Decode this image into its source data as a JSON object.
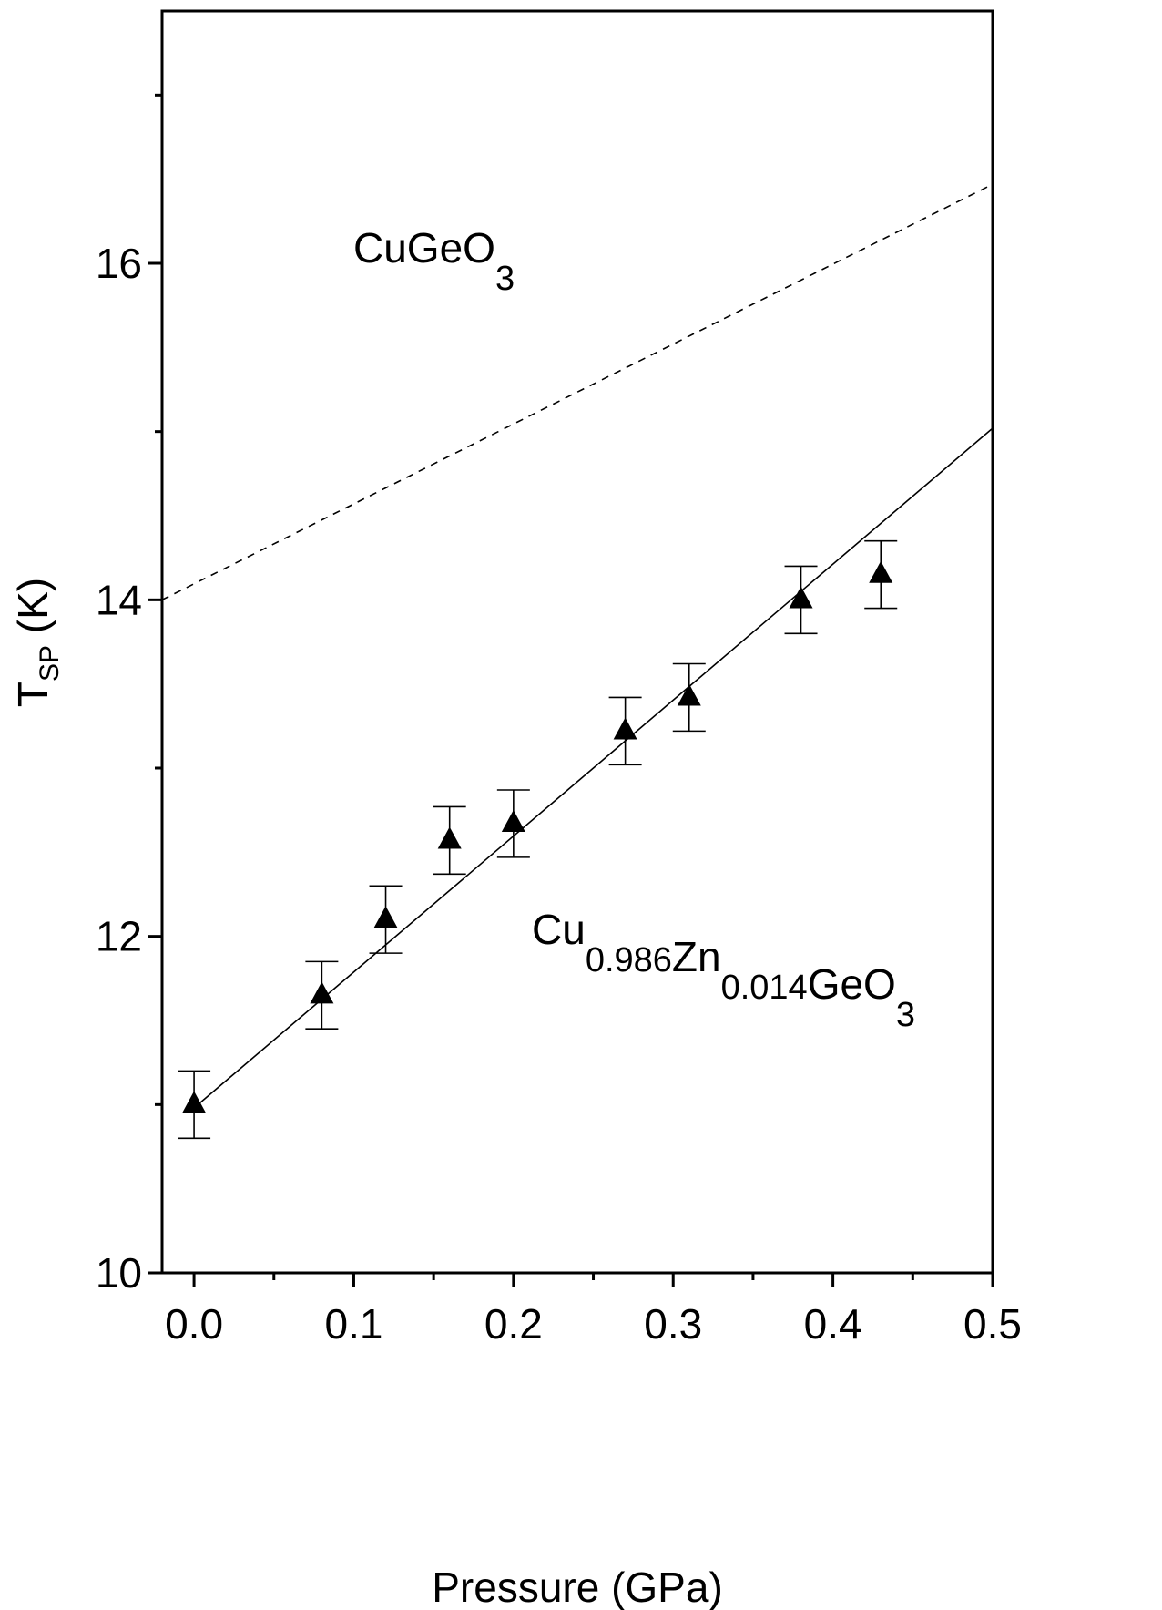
{
  "chart_data": {
    "type": "scatter",
    "title": "",
    "xlabel": "Pressure (GPa)",
    "ylabel": {
      "main": "T",
      "sub": "SP",
      "unit": " (K)"
    },
    "xlim": [
      -0.02,
      0.5
    ],
    "ylim": [
      10,
      17.5
    ],
    "xticks": [
      "0.0",
      "0.1",
      "0.2",
      "0.3",
      "0.4",
      "0.5"
    ],
    "xtick_values": [
      0.0,
      0.1,
      0.2,
      0.3,
      0.4,
      0.5
    ],
    "xminor_values": [
      0.05,
      0.15,
      0.25,
      0.35,
      0.45
    ],
    "yticks": [
      "10",
      "12",
      "14",
      "16"
    ],
    "ytick_values": [
      10,
      12,
      14,
      16
    ],
    "yminor_values": [
      11,
      13,
      15,
      17
    ],
    "grid": false,
    "series": [
      {
        "marker": "filled-triangle",
        "color": "#000000",
        "points": [
          {
            "x": 0.0,
            "y": 11.0,
            "err": 0.2
          },
          {
            "x": 0.08,
            "y": 11.65,
            "err": 0.2
          },
          {
            "x": 0.12,
            "y": 12.1,
            "err": 0.2
          },
          {
            "x": 0.16,
            "y": 12.57,
            "err": 0.2
          },
          {
            "x": 0.2,
            "y": 12.67,
            "err": 0.2
          },
          {
            "x": 0.27,
            "y": 13.22,
            "err": 0.2
          },
          {
            "x": 0.31,
            "y": 13.42,
            "err": 0.2
          },
          {
            "x": 0.38,
            "y": 14.0,
            "err": 0.2
          },
          {
            "x": 0.43,
            "y": 14.15,
            "err": 0.2
          }
        ]
      }
    ],
    "lines": [
      {
        "style": "solid",
        "x": [
          0.0,
          0.5
        ],
        "y": [
          10.98,
          15.02
        ]
      },
      {
        "style": "dashed",
        "x": [
          -0.02,
          0.5
        ],
        "y": [
          14.0,
          16.47
        ]
      }
    ],
    "annotations": [
      {
        "segments": [
          {
            "text": "CuGeO",
            "sub": "3"
          }
        ]
      },
      {
        "segments": [
          {
            "text": "Cu",
            "sub": "0.986"
          },
          {
            "text": "Zn",
            "sub": "0.014"
          },
          {
            "text": "GeO",
            "sub": "3"
          }
        ]
      }
    ]
  }
}
